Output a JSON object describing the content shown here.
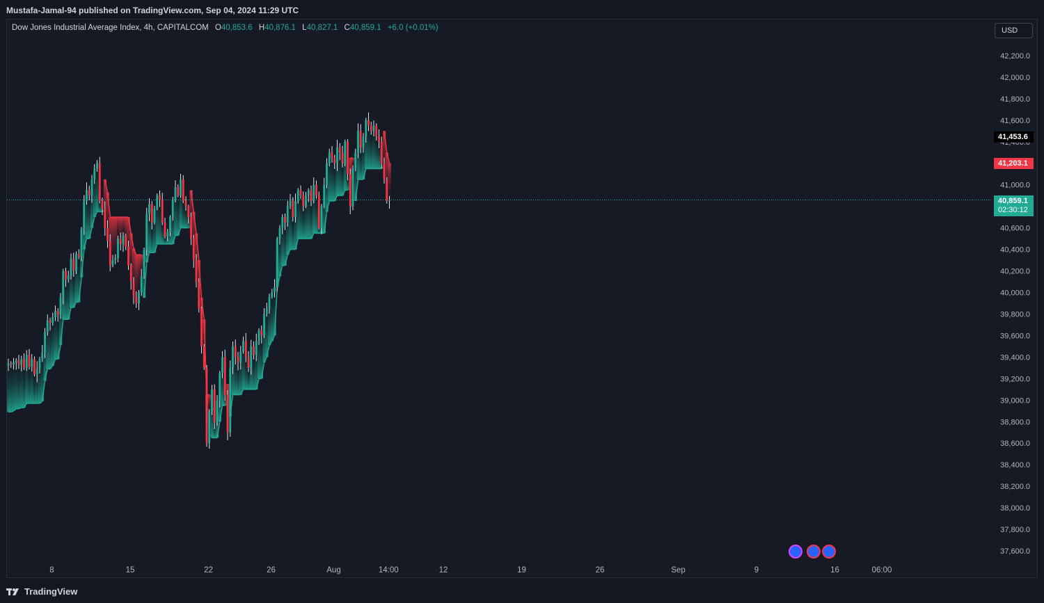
{
  "header": {
    "publisher": "Mustafa-Jamal-94 published on TradingView.com, Sep 04, 2024 11:29 UTC"
  },
  "legend": {
    "symbol": "Dow Jones Industrial Average Index, 4h, CAPITALCOM",
    "open_label": "O",
    "open": "40,853.6",
    "high_label": "H",
    "high": "40,876.1",
    "low_label": "L",
    "low": "40,827.1",
    "close_label": "C",
    "close": "40,859.1",
    "change": "+6.0 (+0.01%)"
  },
  "currency_button": "USD",
  "price_labels": {
    "black": "41,453.6",
    "red": "41,203.1",
    "green": "40,859.1",
    "countdown": "02:30:12"
  },
  "brand": "TradingView",
  "colors": {
    "background": "#161a25",
    "up": "#22ab94",
    "down": "#f23645",
    "text": "#d1d4dc",
    "grid_border": "#2a2e39"
  },
  "chart_data": {
    "type": "candlestick",
    "symbol": "Dow Jones Industrial Average Index",
    "interval": "4h",
    "currency": "USD",
    "ylim": [
      37500,
      42400
    ],
    "y_ticks": [
      "42,200.0",
      "42,000.0",
      "41,800.0",
      "41,600.0",
      "41,400.0",
      "41,000.0",
      "40,600.0",
      "40,400.0",
      "40,200.0",
      "40,000.0",
      "39,800.0",
      "39,600.0",
      "39,400.0",
      "39,200.0",
      "39,000.0",
      "38,800.0",
      "38,600.0",
      "38,400.0",
      "38,200.0",
      "38,000.0",
      "37,800.0",
      "37,600.0"
    ],
    "x_ticks": [
      {
        "label": "8",
        "i": 2
      },
      {
        "label": "15",
        "i": 32
      },
      {
        "label": "22",
        "i": 62
      },
      {
        "label": "26",
        "i": 86
      },
      {
        "label": "Aug",
        "i": 110
      },
      {
        "label": "14:00",
        "i": 131
      },
      {
        "label": "12",
        "i": 152
      },
      {
        "label": "19",
        "i": 182
      },
      {
        "label": "26",
        "i": 212
      },
      {
        "label": "Sep",
        "i": 242
      },
      {
        "label": "9",
        "i": 272
      },
      {
        "label": "16",
        "i": 302
      },
      {
        "label": "06:00",
        "i": 320
      }
    ],
    "last_price": 40859.1,
    "closes": [
      39340,
      39330,
      39350,
      39370,
      39330,
      39380,
      39300,
      39420,
      39310,
      39380,
      39240,
      39290,
      39380,
      39440,
      39630,
      39740,
      39720,
      39770,
      39830,
      39790,
      39960,
      40200,
      40120,
      40160,
      40310,
      40200,
      40360,
      40330,
      40590,
      40850,
      40950,
      40900,
      41050,
      41150,
      41200,
      40850,
      40780,
      40600,
      40480,
      40250,
      40300,
      40320,
      40500,
      40450,
      40530,
      40430,
      40250,
      40100,
      39960,
      39900,
      40000,
      40150,
      40400,
      40730,
      40820,
      40650,
      40780,
      40900,
      40860,
      40650,
      40520,
      40560,
      40700,
      40860,
      40980,
      40900,
      41050,
      40850,
      40800,
      40700,
      40500,
      40300,
      40100,
      39850,
      39500,
      39300,
      38600,
      38900,
      39100,
      38800,
      39000,
      39250,
      39400,
      39050,
      38700,
      39300,
      39500,
      39400,
      39350,
      39450,
      39550,
      39400,
      39300,
      39500,
      39420,
      39550,
      39650,
      39600,
      39800,
      39850,
      39960,
      40000,
      40050,
      40500,
      40600,
      40700,
      40650,
      40800,
      40850,
      40700,
      40850,
      40950,
      40900,
      40800,
      40900,
      40950,
      40850,
      41000,
      40900,
      40600,
      40800,
      41000,
      41200,
      41300,
      41250,
      41200,
      41350,
      41300,
      41200,
      41400,
      41100,
      40800,
      41150,
      41300,
      41500,
      41350,
      41450,
      41600,
      41550,
      41500,
      41550,
      41450,
      41400,
      41200,
      41050,
      40850,
      40859.1
    ],
    "trail_stop": {
      "up_color": "#22ab94",
      "down_color": "#f23645",
      "last_level": 41203.1
    }
  }
}
